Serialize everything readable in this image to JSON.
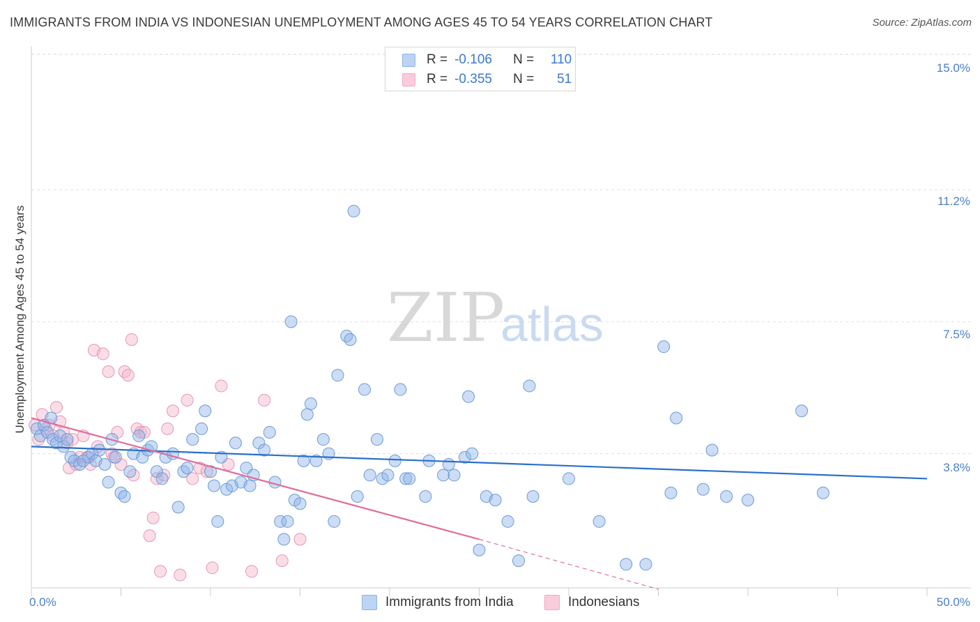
{
  "chart_data": {
    "type": "scatter",
    "title": "IMMIGRANTS FROM INDIA VS INDONESIAN UNEMPLOYMENT AMONG AGES 45 TO 54 YEARS CORRELATION CHART",
    "source": "Source: ZipAtlas.com",
    "watermark": {
      "zip": "ZIP",
      "atlas": "atlas"
    },
    "xlabel": "",
    "ylabel": "Unemployment Among Ages 45 to 54 years",
    "xlim": [
      0,
      50
    ],
    "ylim": [
      0,
      15.5
    ],
    "x_tick_labels": {
      "min": "0.0%",
      "max": "50.0%"
    },
    "y_ticks": [
      {
        "value": 3.8,
        "label": "3.8%"
      },
      {
        "value": 7.5,
        "label": "7.5%"
      },
      {
        "value": 11.2,
        "label": "11.2%"
      },
      {
        "value": 15.0,
        "label": "15.0%"
      }
    ],
    "legend": {
      "rows": [
        {
          "r_label": "R =",
          "r_value": "-0.106",
          "n_label": "N =",
          "n_value": "110"
        },
        {
          "r_label": "R =",
          "r_value": "-0.355",
          "n_label": "N =",
          "n_value": "51"
        }
      ]
    },
    "series": [
      {
        "name": "Immigrants from India",
        "color": "#8fb4e8",
        "stroke": "#6b9bd8",
        "line_color": "#2a6fcc",
        "trend": {
          "x0": 0,
          "y0": 4.0,
          "x1": 50,
          "y1": 3.1
        },
        "points": [
          [
            0.3,
            4.5
          ],
          [
            0.5,
            4.3
          ],
          [
            0.7,
            4.6
          ],
          [
            0.9,
            4.4
          ],
          [
            1.1,
            4.8
          ],
          [
            1.2,
            4.2
          ],
          [
            1.4,
            4.1
          ],
          [
            1.6,
            4.3
          ],
          [
            1.8,
            4.0
          ],
          [
            2.0,
            4.2
          ],
          [
            2.2,
            3.7
          ],
          [
            2.4,
            3.6
          ],
          [
            2.7,
            3.5
          ],
          [
            2.9,
            3.6
          ],
          [
            3.2,
            3.7
          ],
          [
            3.4,
            3.8
          ],
          [
            3.6,
            3.6
          ],
          [
            3.8,
            3.9
          ],
          [
            4.1,
            3.5
          ],
          [
            4.3,
            3.0
          ],
          [
            4.5,
            4.2
          ],
          [
            4.7,
            3.7
          ],
          [
            5.0,
            2.7
          ],
          [
            5.2,
            2.6
          ],
          [
            5.5,
            3.3
          ],
          [
            5.7,
            3.8
          ],
          [
            6.0,
            4.3
          ],
          [
            6.2,
            3.7
          ],
          [
            6.5,
            3.9
          ],
          [
            6.7,
            4.0
          ],
          [
            7.0,
            3.3
          ],
          [
            7.3,
            3.1
          ],
          [
            7.5,
            3.7
          ],
          [
            7.9,
            3.8
          ],
          [
            8.2,
            2.3
          ],
          [
            8.5,
            3.3
          ],
          [
            8.7,
            3.4
          ],
          [
            9.0,
            4.2
          ],
          [
            9.5,
            4.5
          ],
          [
            9.7,
            5.0
          ],
          [
            10.0,
            3.3
          ],
          [
            10.2,
            2.9
          ],
          [
            10.4,
            1.9
          ],
          [
            10.6,
            3.7
          ],
          [
            10.9,
            2.8
          ],
          [
            11.2,
            2.9
          ],
          [
            11.4,
            4.1
          ],
          [
            11.7,
            3.0
          ],
          [
            12.0,
            3.4
          ],
          [
            12.2,
            2.9
          ],
          [
            12.4,
            3.2
          ],
          [
            12.7,
            4.1
          ],
          [
            13.0,
            3.9
          ],
          [
            13.3,
            4.4
          ],
          [
            13.6,
            3.0
          ],
          [
            13.9,
            1.9
          ],
          [
            14.1,
            1.4
          ],
          [
            14.3,
            1.9
          ],
          [
            14.5,
            7.5
          ],
          [
            14.7,
            2.5
          ],
          [
            15.0,
            2.4
          ],
          [
            15.2,
            3.6
          ],
          [
            15.4,
            4.9
          ],
          [
            15.6,
            5.2
          ],
          [
            15.9,
            3.6
          ],
          [
            16.3,
            4.2
          ],
          [
            16.6,
            3.8
          ],
          [
            16.9,
            1.9
          ],
          [
            17.1,
            6.0
          ],
          [
            17.6,
            7.1
          ],
          [
            17.8,
            7.0
          ],
          [
            18.0,
            10.6
          ],
          [
            18.2,
            2.6
          ],
          [
            18.6,
            5.6
          ],
          [
            18.9,
            3.2
          ],
          [
            19.3,
            4.2
          ],
          [
            19.6,
            3.1
          ],
          [
            19.9,
            3.2
          ],
          [
            20.3,
            3.6
          ],
          [
            20.6,
            5.6
          ],
          [
            20.9,
            3.1
          ],
          [
            21.1,
            3.1
          ],
          [
            22.0,
            2.6
          ],
          [
            22.2,
            3.6
          ],
          [
            23.0,
            3.2
          ],
          [
            23.3,
            3.5
          ],
          [
            23.6,
            3.2
          ],
          [
            24.2,
            3.7
          ],
          [
            24.4,
            5.4
          ],
          [
            24.6,
            3.8
          ],
          [
            25.0,
            1.1
          ],
          [
            25.4,
            2.6
          ],
          [
            25.9,
            2.5
          ],
          [
            26.6,
            1.9
          ],
          [
            27.2,
            0.8
          ],
          [
            27.8,
            5.7
          ],
          [
            28.0,
            2.6
          ],
          [
            30.0,
            3.1
          ],
          [
            31.7,
            1.9
          ],
          [
            33.2,
            0.7
          ],
          [
            34.3,
            0.7
          ],
          [
            35.3,
            6.8
          ],
          [
            35.7,
            2.7
          ],
          [
            36.0,
            4.8
          ],
          [
            37.5,
            2.8
          ],
          [
            38.0,
            3.9
          ],
          [
            38.8,
            2.6
          ],
          [
            40.0,
            2.5
          ],
          [
            43.0,
            5.0
          ],
          [
            44.2,
            2.7
          ]
        ]
      },
      {
        "name": "Indonesians",
        "color": "#f4b6ca",
        "stroke": "#e895b3",
        "line_color": "#e06f9b",
        "trend": {
          "x0": 0,
          "y0": 4.8,
          "x1": 25.0,
          "y1": 1.4
        },
        "trend_dashed": {
          "x0": 25.0,
          "y0": 1.4,
          "x1": 35.0,
          "y1": 0.0
        },
        "points": [
          [
            0.2,
            4.6
          ],
          [
            0.4,
            4.2
          ],
          [
            0.6,
            4.9
          ],
          [
            0.8,
            4.5
          ],
          [
            1.0,
            4.6
          ],
          [
            1.2,
            4.3
          ],
          [
            1.4,
            5.1
          ],
          [
            1.6,
            4.7
          ],
          [
            1.8,
            4.4
          ],
          [
            2.0,
            4.1
          ],
          [
            2.1,
            3.4
          ],
          [
            2.3,
            4.2
          ],
          [
            2.5,
            3.5
          ],
          [
            2.7,
            3.7
          ],
          [
            2.9,
            4.3
          ],
          [
            3.1,
            3.7
          ],
          [
            3.3,
            3.5
          ],
          [
            3.5,
            6.7
          ],
          [
            3.7,
            4.0
          ],
          [
            4.0,
            6.6
          ],
          [
            4.3,
            6.1
          ],
          [
            4.5,
            3.8
          ],
          [
            4.6,
            3.7
          ],
          [
            4.8,
            4.4
          ],
          [
            5.0,
            3.5
          ],
          [
            5.2,
            6.1
          ],
          [
            5.4,
            6.0
          ],
          [
            5.6,
            7.0
          ],
          [
            5.7,
            3.2
          ],
          [
            5.9,
            4.5
          ],
          [
            6.1,
            4.4
          ],
          [
            6.3,
            4.4
          ],
          [
            6.6,
            1.5
          ],
          [
            6.8,
            2.0
          ],
          [
            7.0,
            3.1
          ],
          [
            7.2,
            0.5
          ],
          [
            7.4,
            3.2
          ],
          [
            7.6,
            4.5
          ],
          [
            7.9,
            5.0
          ],
          [
            8.3,
            0.4
          ],
          [
            8.7,
            5.3
          ],
          [
            9.0,
            3.1
          ],
          [
            9.4,
            3.4
          ],
          [
            9.8,
            3.3
          ],
          [
            10.1,
            0.6
          ],
          [
            10.6,
            5.7
          ],
          [
            11.0,
            3.5
          ],
          [
            12.3,
            0.5
          ],
          [
            13.0,
            5.3
          ],
          [
            14.0,
            0.8
          ],
          [
            15.0,
            1.4
          ]
        ]
      }
    ]
  },
  "bottom_legend": [
    {
      "label": "Immigrants from India",
      "color": "#8fb4e8"
    },
    {
      "label": "Indonesians",
      "color": "#f4b6ca"
    }
  ]
}
